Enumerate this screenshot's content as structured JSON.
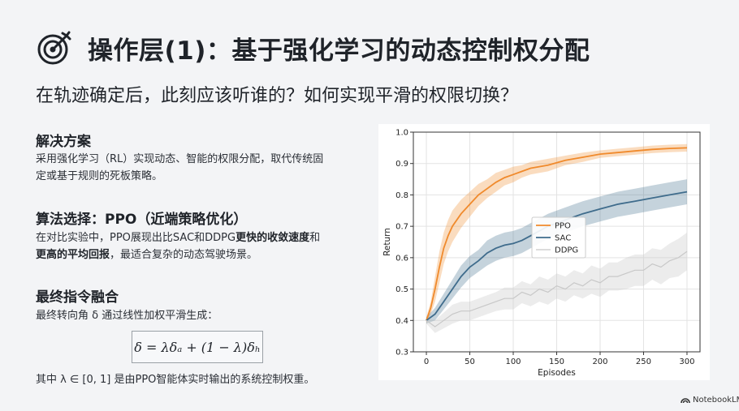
{
  "header": {
    "title": "操作层(1)：基于强化学习的动态控制权分配",
    "subtitle": "在轨迹确定后，此刻应该听谁的？如何实现平滑的权限切换？"
  },
  "sections": [
    {
      "heading": "解决方案",
      "lines": [
        [
          {
            "t": "采用强化学习（RL）实现动态、智能的权限分配，取代传统固",
            "b": false
          }
        ],
        [
          {
            "t": "定或基于规则的死板策略。",
            "b": false
          }
        ]
      ]
    },
    {
      "heading": "算法选择：PPO（近端策略优化）",
      "lines": [
        [
          {
            "t": "在对比实验中，PPO展现出比SAC和DDPG",
            "b": false
          },
          {
            "t": "更快的收敛速度",
            "b": true
          },
          {
            "t": "和",
            "b": false
          }
        ],
        [
          {
            "t": "更高的平均回报",
            "b": true
          },
          {
            "t": "，最适合复杂的动态驾驶场景。",
            "b": false
          }
        ]
      ]
    },
    {
      "heading": "最终指令融合",
      "lines": [
        [
          {
            "t": "最终转向角 δ 通过线性加权平滑生成：",
            "b": false
          }
        ]
      ]
    }
  ],
  "formula": "δ = λδₐ + (1 − λ)δₕ",
  "note": "其中 λ ∈ [0, 1] 是由PPO智能体实时输出的系统控制权重。",
  "brand": "NotebookLM",
  "colors": {
    "ppo": "#f08a2c",
    "sac": "#3f6c8c",
    "ddpg": "#c8c8c8"
  },
  "chart_data": {
    "type": "line",
    "xlabel": "Episodes",
    "ylabel": "Return",
    "xlim": [
      -15,
      315
    ],
    "ylim": [
      0.3,
      1.0
    ],
    "xticks": [
      0,
      50,
      100,
      150,
      200,
      250,
      300
    ],
    "yticks": [
      0.3,
      0.4,
      0.5,
      0.6,
      0.7,
      0.8,
      0.9,
      1.0
    ],
    "legend_position": "center",
    "grid": true,
    "series": [
      {
        "name": "PPO",
        "color": "#f08a2c",
        "x": [
          0,
          5,
          10,
          15,
          20,
          25,
          30,
          40,
          50,
          60,
          70,
          80,
          90,
          100,
          110,
          120,
          140,
          160,
          180,
          200,
          220,
          240,
          260,
          280,
          300
        ],
        "y": [
          0.4,
          0.44,
          0.5,
          0.57,
          0.63,
          0.67,
          0.7,
          0.74,
          0.77,
          0.8,
          0.82,
          0.84,
          0.855,
          0.865,
          0.875,
          0.885,
          0.895,
          0.91,
          0.92,
          0.93,
          0.935,
          0.94,
          0.945,
          0.948,
          0.95
        ],
        "band": [
          0.01,
          0.02,
          0.04,
          0.05,
          0.05,
          0.05,
          0.05,
          0.045,
          0.04,
          0.035,
          0.03,
          0.03,
          0.025,
          0.025,
          0.02,
          0.02,
          0.02,
          0.015,
          0.015,
          0.012,
          0.012,
          0.012,
          0.012,
          0.012,
          0.012
        ]
      },
      {
        "name": "SAC",
        "color": "#3f6c8c",
        "x": [
          0,
          10,
          20,
          30,
          40,
          50,
          60,
          70,
          80,
          90,
          100,
          110,
          120,
          130,
          140,
          150,
          160,
          170,
          180,
          200,
          220,
          240,
          260,
          280,
          300
        ],
        "y": [
          0.4,
          0.42,
          0.46,
          0.5,
          0.54,
          0.57,
          0.59,
          0.615,
          0.63,
          0.64,
          0.645,
          0.655,
          0.67,
          0.685,
          0.7,
          0.71,
          0.72,
          0.73,
          0.74,
          0.755,
          0.77,
          0.78,
          0.79,
          0.8,
          0.81
        ],
        "band": [
          0.01,
          0.02,
          0.025,
          0.03,
          0.035,
          0.035,
          0.035,
          0.04,
          0.04,
          0.04,
          0.04,
          0.04,
          0.04,
          0.04,
          0.04,
          0.04,
          0.04,
          0.04,
          0.04,
          0.04,
          0.04,
          0.04,
          0.04,
          0.04,
          0.04
        ]
      },
      {
        "name": "DDPG",
        "color": "#c8c8c8",
        "x": [
          0,
          10,
          20,
          30,
          40,
          50,
          60,
          70,
          80,
          90,
          100,
          110,
          120,
          130,
          140,
          150,
          160,
          170,
          180,
          190,
          200,
          210,
          220,
          230,
          240,
          250,
          260,
          270,
          280,
          290,
          300
        ],
        "y": [
          0.4,
          0.38,
          0.4,
          0.42,
          0.43,
          0.43,
          0.44,
          0.45,
          0.46,
          0.47,
          0.47,
          0.49,
          0.48,
          0.5,
          0.49,
          0.51,
          0.5,
          0.52,
          0.51,
          0.53,
          0.52,
          0.54,
          0.54,
          0.55,
          0.56,
          0.56,
          0.58,
          0.57,
          0.59,
          0.6,
          0.62
        ],
        "band": [
          0.01,
          0.02,
          0.025,
          0.03,
          0.03,
          0.03,
          0.03,
          0.03,
          0.03,
          0.035,
          0.035,
          0.035,
          0.035,
          0.04,
          0.04,
          0.04,
          0.04,
          0.04,
          0.04,
          0.045,
          0.045,
          0.045,
          0.045,
          0.05,
          0.05,
          0.05,
          0.05,
          0.055,
          0.055,
          0.06,
          0.06
        ]
      }
    ]
  }
}
